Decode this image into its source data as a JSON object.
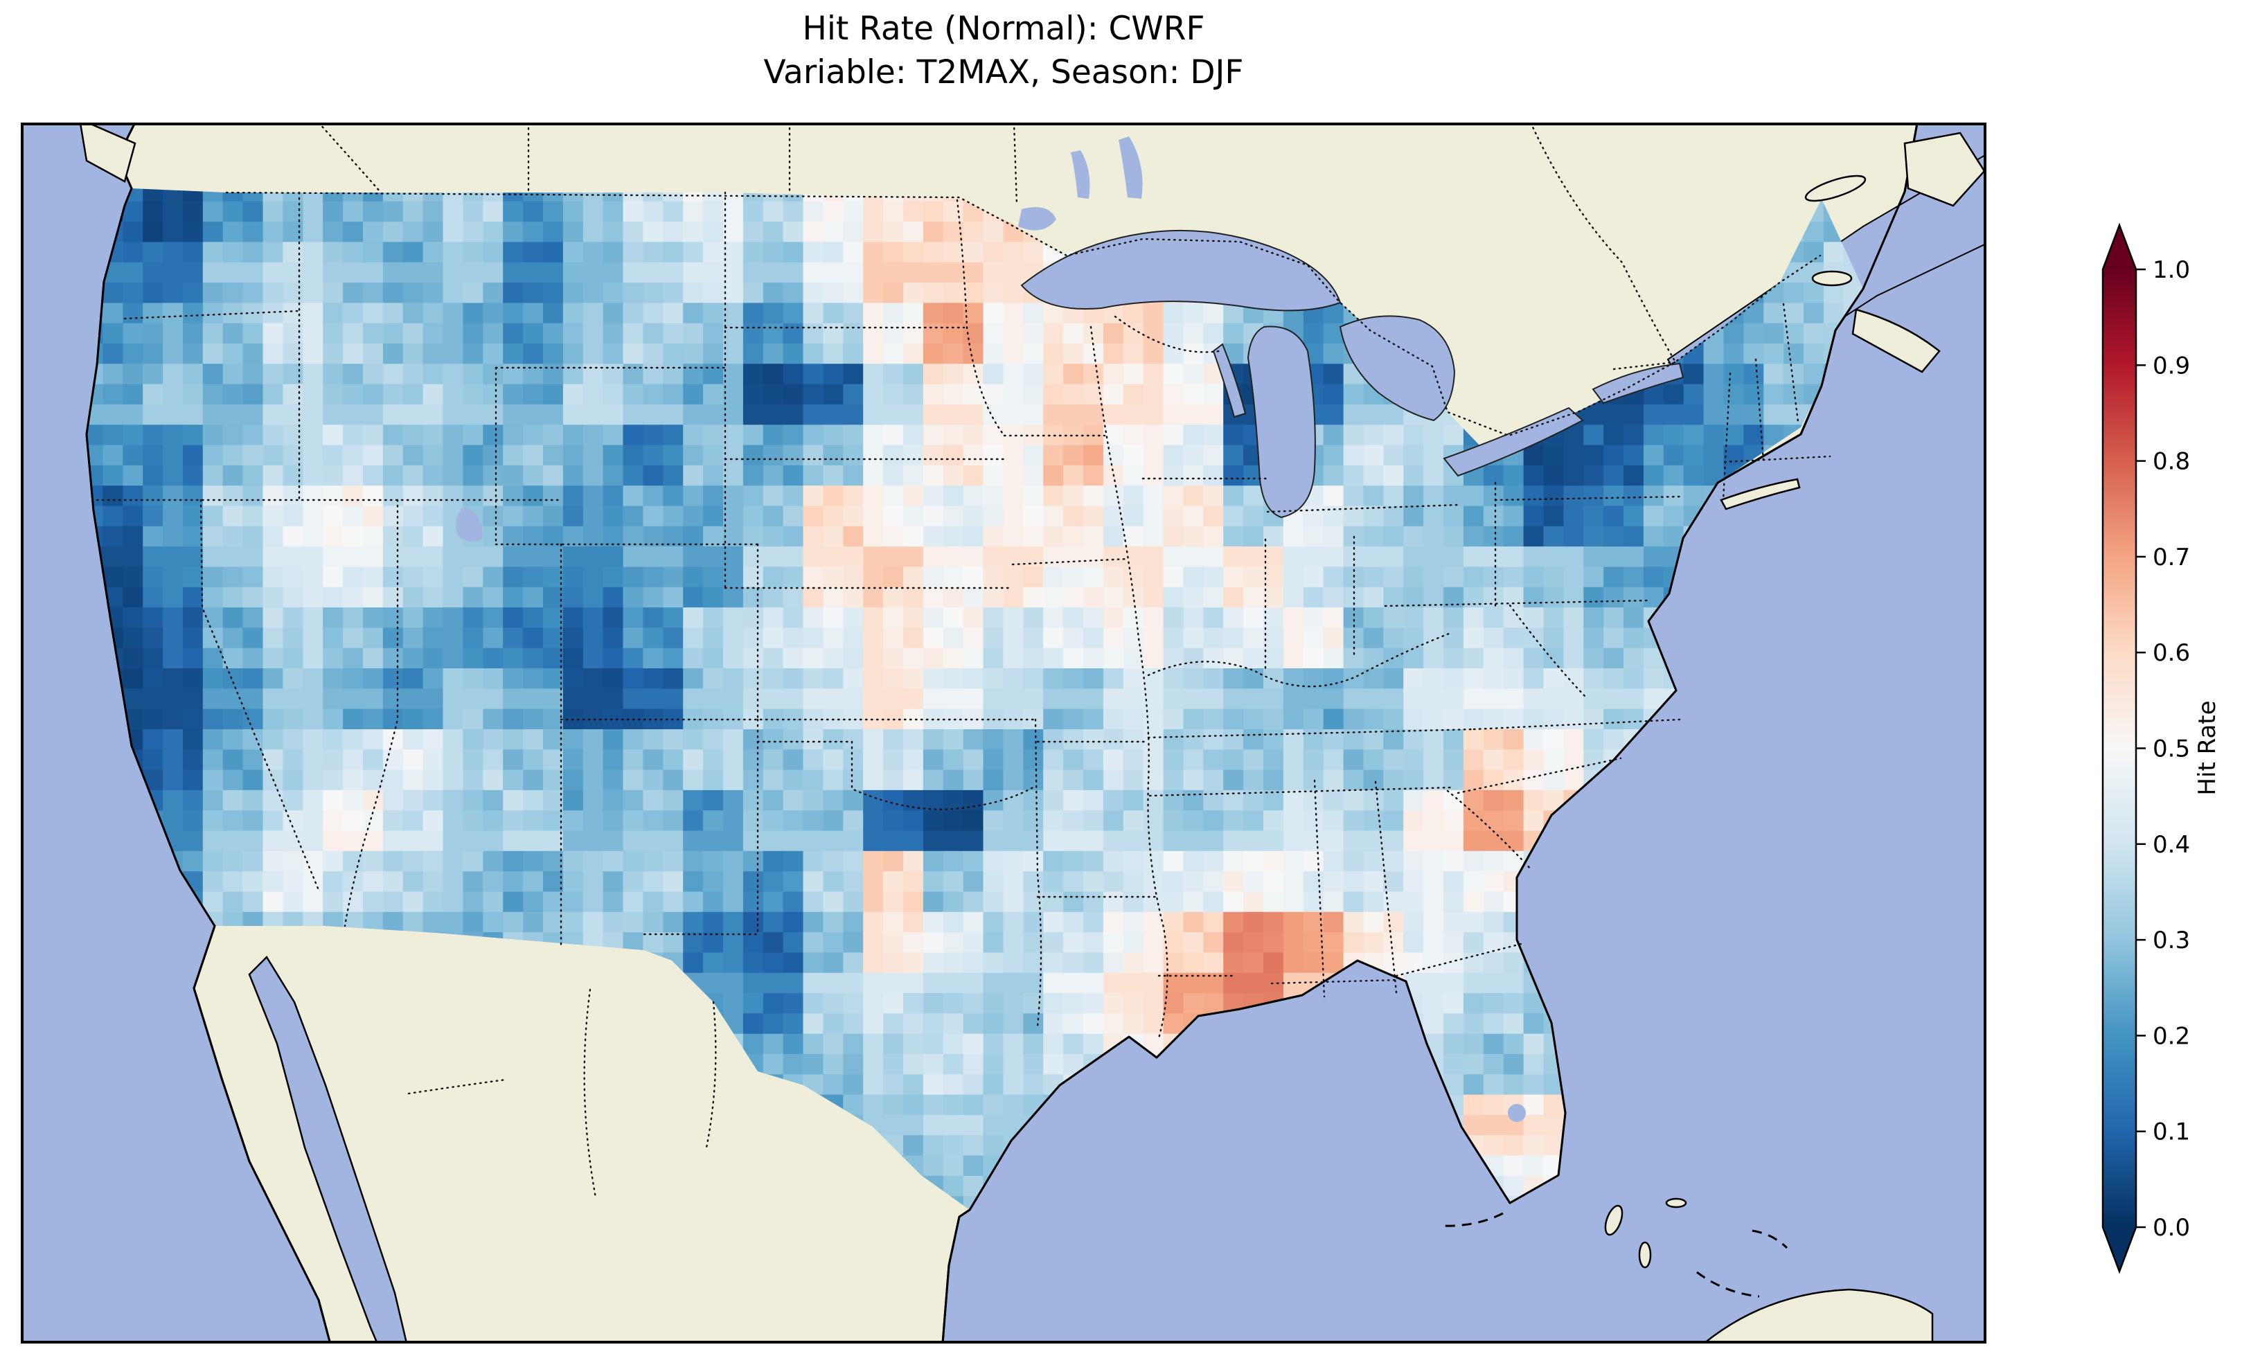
{
  "title": {
    "line1": "Hit Rate (Normal): CWRF",
    "line2": "Variable: T2MAX, Season: DJF"
  },
  "colorbar": {
    "label": "Hit Rate",
    "ticks": [
      "1.0",
      "0.9",
      "0.8",
      "0.7",
      "0.6",
      "0.5",
      "0.4",
      "0.3",
      "0.2",
      "0.1",
      "0.0"
    ],
    "vmin": 0.0,
    "vmax": 1.0,
    "extend": "both"
  },
  "colors": {
    "ocean": "#a1b5e0",
    "land": "#efeedb",
    "coastline": "#000000",
    "border_dots": "#111111",
    "figure_background": "#ffffff",
    "colormap_name": "RdBu_r",
    "colormap_stops": [
      "#053061",
      "#2166ac",
      "#4393c3",
      "#92c5de",
      "#d1e5f0",
      "#f7f7f7",
      "#fddbc7",
      "#f4a582",
      "#d6604d",
      "#b2182b",
      "#67001f"
    ]
  },
  "chart_data": {
    "type": "heatmap",
    "title": "Hit Rate (Normal): CWRF",
    "subtitle": "Variable: T2MAX, Season: DJF",
    "metric": "Hit Rate (Normal)",
    "model": "CWRF",
    "variable": "T2MAX",
    "season": "DJF",
    "colorbar_label": "Hit Rate",
    "vmin": 0.0,
    "vmax": 1.0,
    "colormap": "RdBu_r",
    "extend": "both",
    "coverage": "Contiguous United States",
    "grid_rows": 17,
    "grid_cols": 30,
    "rows_order": "north-to-south",
    "cols_order": "west-to-east",
    "values": [
      [
        0.1,
        0.05,
        0.2,
        0.3,
        0.25,
        0.3,
        0.35,
        0.2,
        0.3,
        0.4,
        0.45,
        0.35,
        0.5,
        0.55,
        0.6,
        0.6,
        0.55,
        0.5,
        0.45,
        0.4,
        0.4,
        0.35,
        0.3,
        0.2,
        0.1,
        0.15,
        0.25,
        0.3,
        0.3,
        0.3
      ],
      [
        0.15,
        0.1,
        0.3,
        0.35,
        0.3,
        0.25,
        0.3,
        0.15,
        0.25,
        0.35,
        0.4,
        0.3,
        0.45,
        0.6,
        0.6,
        0.55,
        0.5,
        0.55,
        0.5,
        0.45,
        0.35,
        0.3,
        0.25,
        0.15,
        0.1,
        0.1,
        0.2,
        0.25,
        0.3,
        0.35
      ],
      [
        0.2,
        0.25,
        0.3,
        0.4,
        0.35,
        0.3,
        0.25,
        0.2,
        0.3,
        0.35,
        0.3,
        0.2,
        0.35,
        0.5,
        0.7,
        0.5,
        0.55,
        0.6,
        0.45,
        0.3,
        0.2,
        0.25,
        0.3,
        0.2,
        0.1,
        0.05,
        0.15,
        0.25,
        0.3,
        0.35
      ],
      [
        0.25,
        0.3,
        0.25,
        0.35,
        0.3,
        0.35,
        0.3,
        0.25,
        0.35,
        0.3,
        0.25,
        0.05,
        0.1,
        0.35,
        0.55,
        0.45,
        0.6,
        0.55,
        0.5,
        0.05,
        0.1,
        0.3,
        0.35,
        0.15,
        0.05,
        0.05,
        0.1,
        0.2,
        0.3,
        0.3
      ],
      [
        0.2,
        0.15,
        0.3,
        0.35,
        0.4,
        0.3,
        0.25,
        0.3,
        0.25,
        0.15,
        0.3,
        0.25,
        0.3,
        0.45,
        0.55,
        0.5,
        0.65,
        0.5,
        0.45,
        0.1,
        0.3,
        0.4,
        0.35,
        0.2,
        0.05,
        0.1,
        0.2,
        0.15,
        0.25,
        0.3
      ],
      [
        0.1,
        0.2,
        0.35,
        0.45,
        0.5,
        0.4,
        0.3,
        0.25,
        0.2,
        0.25,
        0.25,
        0.3,
        0.6,
        0.5,
        0.45,
        0.5,
        0.55,
        0.45,
        0.55,
        0.35,
        0.45,
        0.35,
        0.3,
        0.25,
        0.1,
        0.15,
        0.3,
        0.25,
        0.3,
        0.3
      ],
      [
        0.05,
        0.15,
        0.3,
        0.4,
        0.45,
        0.35,
        0.3,
        0.2,
        0.15,
        0.25,
        0.2,
        0.35,
        0.55,
        0.6,
        0.5,
        0.55,
        0.5,
        0.55,
        0.45,
        0.55,
        0.4,
        0.35,
        0.3,
        0.35,
        0.3,
        0.25,
        0.2,
        0.3,
        0.35,
        0.3
      ],
      [
        0.05,
        0.1,
        0.25,
        0.35,
        0.3,
        0.25,
        0.2,
        0.15,
        0.1,
        0.2,
        0.35,
        0.4,
        0.45,
        0.55,
        0.5,
        0.4,
        0.45,
        0.5,
        0.4,
        0.45,
        0.5,
        0.3,
        0.35,
        0.4,
        0.35,
        0.3,
        0.35,
        0.4,
        0.35,
        0.3
      ],
      [
        0.05,
        0.05,
        0.2,
        0.3,
        0.25,
        0.2,
        0.3,
        0.25,
        0.05,
        0.1,
        0.3,
        0.35,
        0.4,
        0.55,
        0.45,
        0.35,
        0.3,
        0.4,
        0.35,
        0.3,
        0.25,
        0.3,
        0.4,
        0.45,
        0.4,
        0.35,
        0.4,
        0.45,
        0.4,
        0.35
      ],
      [
        0.05,
        0.1,
        0.25,
        0.35,
        0.4,
        0.45,
        0.35,
        0.3,
        0.25,
        0.3,
        0.35,
        0.3,
        0.35,
        0.4,
        0.3,
        0.25,
        0.35,
        0.4,
        0.35,
        0.3,
        0.35,
        0.3,
        0.35,
        0.6,
        0.5,
        0.4,
        0.45,
        0.5,
        0.4,
        0.35
      ],
      [
        0.1,
        0.15,
        0.3,
        0.4,
        0.5,
        0.4,
        0.3,
        0.35,
        0.25,
        0.3,
        0.2,
        0.3,
        0.3,
        0.1,
        0.05,
        0.3,
        0.4,
        0.35,
        0.3,
        0.35,
        0.4,
        0.35,
        0.5,
        0.7,
        0.6,
        0.45,
        0.4,
        0.45,
        0.35,
        0.3
      ],
      [
        0.15,
        0.2,
        0.35,
        0.45,
        0.4,
        0.35,
        0.3,
        0.25,
        0.3,
        0.35,
        0.25,
        0.2,
        0.35,
        0.6,
        0.3,
        0.4,
        0.35,
        0.4,
        0.45,
        0.5,
        0.45,
        0.4,
        0.45,
        0.5,
        0.4,
        0.35,
        0.3,
        0.35,
        0.3,
        0.3
      ],
      [
        0.2,
        0.25,
        0.3,
        0.35,
        0.3,
        0.3,
        0.25,
        0.3,
        0.35,
        0.3,
        0.15,
        0.1,
        0.3,
        0.55,
        0.45,
        0.35,
        0.4,
        0.5,
        0.6,
        0.75,
        0.7,
        0.55,
        0.45,
        0.4,
        0.35,
        0.3,
        0.35,
        0.3,
        0.3,
        0.3
      ],
      [
        0.25,
        0.3,
        0.3,
        0.3,
        0.3,
        0.3,
        0.3,
        0.3,
        0.3,
        0.3,
        0.2,
        0.15,
        0.35,
        0.4,
        0.35,
        0.3,
        0.45,
        0.55,
        0.7,
        0.75,
        0.6,
        0.5,
        0.4,
        0.35,
        0.3,
        0.35,
        0.4,
        0.35,
        0.3,
        0.3
      ],
      [
        0.3,
        0.3,
        0.3,
        0.3,
        0.3,
        0.3,
        0.3,
        0.3,
        0.3,
        0.3,
        0.3,
        0.25,
        0.3,
        0.35,
        0.4,
        0.35,
        0.4,
        0.5,
        0.6,
        0.55,
        0.45,
        0.4,
        0.35,
        0.3,
        0.35,
        0.4,
        0.35,
        0.3,
        0.3,
        0.3
      ],
      [
        0.3,
        0.3,
        0.3,
        0.3,
        0.3,
        0.3,
        0.3,
        0.3,
        0.3,
        0.3,
        0.3,
        0.3,
        0.25,
        0.3,
        0.35,
        0.3,
        0.3,
        0.35,
        0.4,
        0.35,
        0.3,
        0.3,
        0.35,
        0.6,
        0.55,
        0.4,
        0.3,
        0.3,
        0.3,
        0.3
      ],
      [
        0.3,
        0.3,
        0.3,
        0.3,
        0.3,
        0.3,
        0.3,
        0.3,
        0.3,
        0.3,
        0.3,
        0.3,
        0.3,
        0.3,
        0.3,
        0.3,
        0.3,
        0.3,
        0.35,
        0.3,
        0.3,
        0.3,
        0.4,
        0.45,
        0.5,
        0.35,
        0.3,
        0.3,
        0.3,
        0.3
      ]
    ]
  }
}
